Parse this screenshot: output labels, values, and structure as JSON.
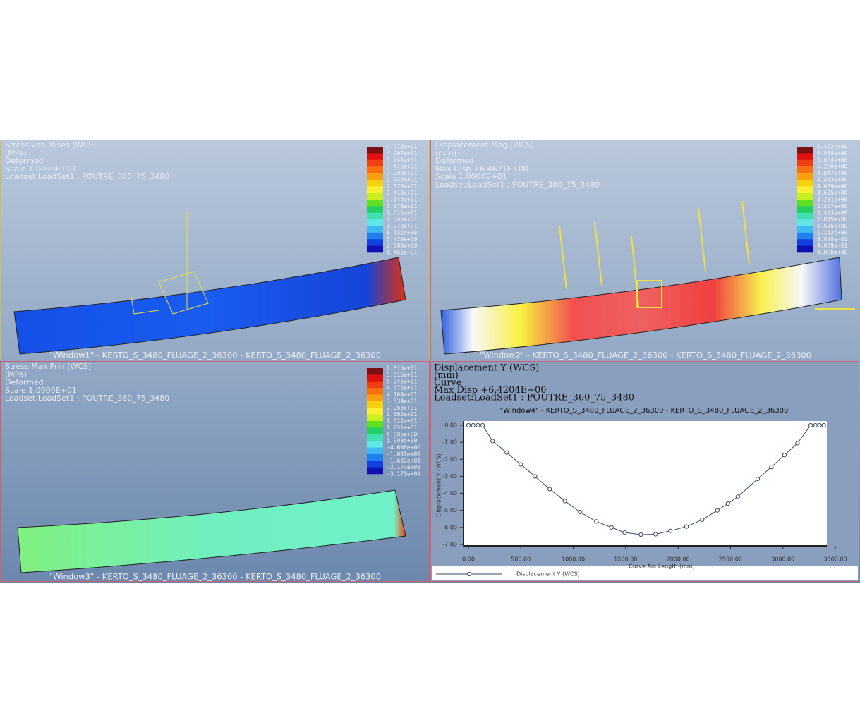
{
  "legend_colors": [
    "#7a1010",
    "#e01010",
    "#f04010",
    "#f87010",
    "#f8a010",
    "#f8d010",
    "#f8f030",
    "#c8f020",
    "#60e020",
    "#20d060",
    "#40e0b0",
    "#60e8e8",
    "#40b8f0",
    "#2080f0",
    "#1040e0",
    "#1010b0"
  ],
  "panels": [
    {
      "header": [
        "Stress von Mises (WCS)",
        "(MPa)",
        "Deformed",
        "Scale  1.0000E+01",
        "Loadset:LoadSet1 :  POUTRE_360_75_3480"
      ],
      "legend": [
        "4.273e+01",
        "4.007e+01",
        "3.741e+01",
        "3.475e+01",
        "3.209e+01",
        "2.943e+01",
        "2.676e+01",
        "2.410e+01",
        "2.144e+01",
        "1.878e+01",
        "1.612e+01",
        "1.345e+01",
        "1.079e+01",
        "8.131e+00",
        "5.470e+00",
        "2.809e+00",
        "1.461e-01"
      ],
      "footer": "\"Window1\" - KERTO_S_3480_FLUAGE_2_36300 - KERTO_S_3480_FLUAGE_2_36300"
    },
    {
      "header": [
        "Displacement Mag (WCS)",
        "(mm)",
        "Deformed",
        "Max Disp  +6.4621E+00",
        "Scale  1.0000E+01",
        "Loadset:LoadSet1 :  POUTRE_360_75_3480"
      ],
      "legend": [
        "6.462e+00",
        "6.058e+00",
        "5.654e+00",
        "5.250e+00",
        "4.847e+00",
        "4.443e+00",
        "4.039e+00",
        "3.635e+00",
        "3.231e+00",
        "2.827e+00",
        "2.423e+00",
        "2.019e+00",
        "1.616e+00",
        "1.212e+00",
        "8.078e-01",
        "4.039e-01",
        "0.000e+00"
      ],
      "footer": "\"Window2\" - KERTO_S_3480_FLUAGE_2_36300 - KERTO_S_3480_FLUAGE_2_36300"
    },
    {
      "header": [
        "Stress Max Prin (WCS)",
        "(MPa)",
        "Deformed",
        "Scale  1.0000E+01",
        "Loadset:LoadSet1 :  POUTRE_360_75_3480"
      ],
      "legend": [
        "6.815e+01",
        "5.816e+01",
        "5.245e+01",
        "4.675e+01",
        "4.104e+01",
        "3.534e+01",
        "2.963e+01",
        "2.392e+01",
        "1.822e+01",
        "1.251e+01",
        "6.805e+00",
        "1.098e+00",
        "-4.608e+00",
        "-1.031e+01",
        "-1.602e+01",
        "-2.173e+01",
        "-3.171e+01"
      ],
      "footer": "\"Window3\" - KERTO_S_3480_FLUAGE_2_36300 - KERTO_S_3480_FLUAGE_2_36300"
    }
  ],
  "window4": {
    "header": [
      "Displacement Y (WCS)",
      "(mm)",
      "Curve",
      "Max Disp  +6.4204E+00",
      "Loadset:LoadSet1 :  POUTRE_360_75_3480"
    ]
  },
  "chart_data": {
    "type": "line",
    "title": "\"Window4\" - KERTO_S_3480_FLUAGE_2_36300 - KERTO_S_3480_FLUAGE_2_36300",
    "x_label": "Curve Arc Length (mm)",
    "y_label": "Displacement Y (WCS)",
    "x": [
      0,
      45,
      90,
      135,
      230,
      365,
      500,
      635,
      775,
      920,
      1065,
      1220,
      1365,
      1490,
      1645,
      1785,
      1925,
      2080,
      2230,
      2375,
      2475,
      2570,
      2760,
      2890,
      3015,
      3140,
      3265,
      3310,
      3350,
      3390
    ],
    "series": [
      {
        "name": "Displacement Y (WCS)",
        "color": "#3a4a6a",
        "values": [
          0,
          0,
          0,
          0,
          -0.93,
          -1.6,
          -2.3,
          -3.0,
          -3.75,
          -4.45,
          -5.1,
          -5.65,
          -6.0,
          -6.3,
          -6.42,
          -6.4,
          -6.2,
          -5.95,
          -5.55,
          -5.0,
          -4.6,
          -4.2,
          -3.15,
          -2.45,
          -1.75,
          -1.05,
          0,
          0,
          0,
          0
        ]
      }
    ],
    "xlim": [
      0,
      3500
    ],
    "xticks": [
      {
        "value": 0,
        "label": "0.00"
      },
      {
        "value": 500,
        "label": "500.00"
      },
      {
        "value": 1000,
        "label": "1000.00"
      },
      {
        "value": 1500,
        "label": "1500.00"
      },
      {
        "value": 2000,
        "label": "2000.00"
      },
      {
        "value": 2500,
        "label": "2500.00"
      },
      {
        "value": 3000,
        "label": "3000.00"
      },
      {
        "value": 3500,
        "label": "3500.00"
      }
    ],
    "ylim": [
      -7,
      0
    ],
    "yticks": [
      {
        "value": 0,
        "label": "0.00"
      },
      {
        "value": -1,
        "label": "-1.00"
      },
      {
        "value": -2,
        "label": "-2.00"
      },
      {
        "value": -3,
        "label": "-3.00"
      },
      {
        "value": -4,
        "label": "-4.00"
      },
      {
        "value": -5,
        "label": "-5.00"
      },
      {
        "value": -6,
        "label": "-6.00"
      },
      {
        "value": -7,
        "label": "-7.00"
      }
    ]
  }
}
